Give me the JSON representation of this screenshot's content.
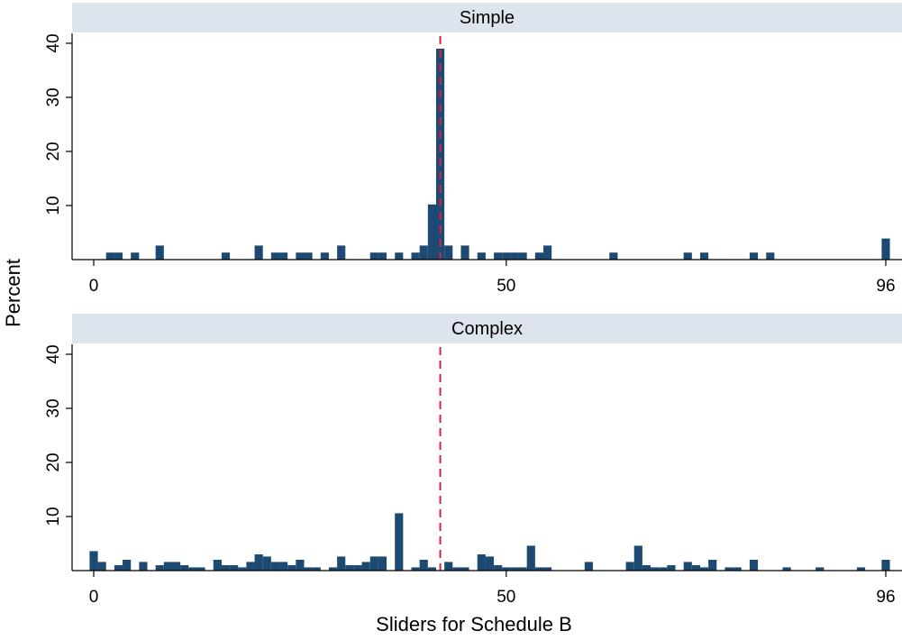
{
  "chart_data": {
    "type": "bar",
    "ylabel": "Percent",
    "xlabel": "Sliders for Schedule B",
    "xlim": [
      0,
      96
    ],
    "ylim": [
      0,
      40
    ],
    "x_ticks": [
      0,
      50,
      96
    ],
    "y_ticks": [
      10,
      20,
      30,
      40
    ],
    "reference_line_x": 42,
    "reference_line_color": "#d62246",
    "bar_color": "#1d4a72",
    "strip_color": "#dde4ee",
    "panels": [
      {
        "title": "Simple",
        "bars": [
          {
            "x": 2,
            "y": 1.3
          },
          {
            "x": 3,
            "y": 1.3
          },
          {
            "x": 5,
            "y": 1.3
          },
          {
            "x": 8,
            "y": 2.6
          },
          {
            "x": 16,
            "y": 1.3
          },
          {
            "x": 20,
            "y": 2.6
          },
          {
            "x": 22,
            "y": 1.3
          },
          {
            "x": 23,
            "y": 1.3
          },
          {
            "x": 25,
            "y": 1.3
          },
          {
            "x": 26,
            "y": 1.3
          },
          {
            "x": 28,
            "y": 1.3
          },
          {
            "x": 30,
            "y": 2.6
          },
          {
            "x": 34,
            "y": 1.3
          },
          {
            "x": 35,
            "y": 1.3
          },
          {
            "x": 37,
            "y": 1.3
          },
          {
            "x": 39,
            "y": 1.3
          },
          {
            "x": 40,
            "y": 2.6
          },
          {
            "x": 41,
            "y": 10.2
          },
          {
            "x": 42,
            "y": 39
          },
          {
            "x": 43,
            "y": 2.6
          },
          {
            "x": 45,
            "y": 2.6
          },
          {
            "x": 47,
            "y": 1.3
          },
          {
            "x": 49,
            "y": 1.3
          },
          {
            "x": 50,
            "y": 1.3
          },
          {
            "x": 51,
            "y": 1.3
          },
          {
            "x": 52,
            "y": 1.3
          },
          {
            "x": 54,
            "y": 1.3
          },
          {
            "x": 55,
            "y": 2.6
          },
          {
            "x": 63,
            "y": 1.3
          },
          {
            "x": 72,
            "y": 1.3
          },
          {
            "x": 74,
            "y": 1.3
          },
          {
            "x": 80,
            "y": 1.3
          },
          {
            "x": 82,
            "y": 1.3
          },
          {
            "x": 96,
            "y": 3.9
          }
        ]
      },
      {
        "title": "Complex",
        "bars": [
          {
            "x": 0,
            "y": 3.6
          },
          {
            "x": 1,
            "y": 1.6
          },
          {
            "x": 3,
            "y": 1.0
          },
          {
            "x": 4,
            "y": 2.0
          },
          {
            "x": 6,
            "y": 1.6
          },
          {
            "x": 8,
            "y": 1.0
          },
          {
            "x": 9,
            "y": 1.6
          },
          {
            "x": 10,
            "y": 1.6
          },
          {
            "x": 11,
            "y": 1.0
          },
          {
            "x": 12,
            "y": 0.6
          },
          {
            "x": 13,
            "y": 0.6
          },
          {
            "x": 15,
            "y": 2.0
          },
          {
            "x": 16,
            "y": 1.0
          },
          {
            "x": 17,
            "y": 1.0
          },
          {
            "x": 18,
            "y": 0.6
          },
          {
            "x": 19,
            "y": 1.6
          },
          {
            "x": 20,
            "y": 3.0
          },
          {
            "x": 21,
            "y": 2.6
          },
          {
            "x": 22,
            "y": 1.6
          },
          {
            "x": 23,
            "y": 1.6
          },
          {
            "x": 24,
            "y": 1.0
          },
          {
            "x": 25,
            "y": 2.0
          },
          {
            "x": 26,
            "y": 0.6
          },
          {
            "x": 27,
            "y": 0.6
          },
          {
            "x": 29,
            "y": 0.6
          },
          {
            "x": 30,
            "y": 2.6
          },
          {
            "x": 31,
            "y": 1.0
          },
          {
            "x": 32,
            "y": 1.0
          },
          {
            "x": 33,
            "y": 1.6
          },
          {
            "x": 34,
            "y": 2.6
          },
          {
            "x": 35,
            "y": 2.6
          },
          {
            "x": 37,
            "y": 10.6
          },
          {
            "x": 39,
            "y": 0.6
          },
          {
            "x": 40,
            "y": 2.0
          },
          {
            "x": 41,
            "y": 0.6
          },
          {
            "x": 43,
            "y": 1.6
          },
          {
            "x": 44,
            "y": 0.6
          },
          {
            "x": 45,
            "y": 0.6
          },
          {
            "x": 47,
            "y": 3.0
          },
          {
            "x": 48,
            "y": 2.6
          },
          {
            "x": 49,
            "y": 1.0
          },
          {
            "x": 50,
            "y": 0.6
          },
          {
            "x": 51,
            "y": 0.6
          },
          {
            "x": 52,
            "y": 0.6
          },
          {
            "x": 53,
            "y": 4.6
          },
          {
            "x": 54,
            "y": 0.6
          },
          {
            "x": 55,
            "y": 0.6
          },
          {
            "x": 60,
            "y": 1.6
          },
          {
            "x": 65,
            "y": 1.6
          },
          {
            "x": 66,
            "y": 4.6
          },
          {
            "x": 67,
            "y": 1.0
          },
          {
            "x": 68,
            "y": 0.6
          },
          {
            "x": 69,
            "y": 0.6
          },
          {
            "x": 70,
            "y": 1.0
          },
          {
            "x": 72,
            "y": 1.6
          },
          {
            "x": 73,
            "y": 1.0
          },
          {
            "x": 74,
            "y": 0.6
          },
          {
            "x": 75,
            "y": 2.0
          },
          {
            "x": 77,
            "y": 0.6
          },
          {
            "x": 78,
            "y": 0.6
          },
          {
            "x": 80,
            "y": 2.0
          },
          {
            "x": 84,
            "y": 0.6
          },
          {
            "x": 88,
            "y": 0.6
          },
          {
            "x": 93,
            "y": 0.6
          },
          {
            "x": 96,
            "y": 2.0
          }
        ]
      }
    ]
  }
}
